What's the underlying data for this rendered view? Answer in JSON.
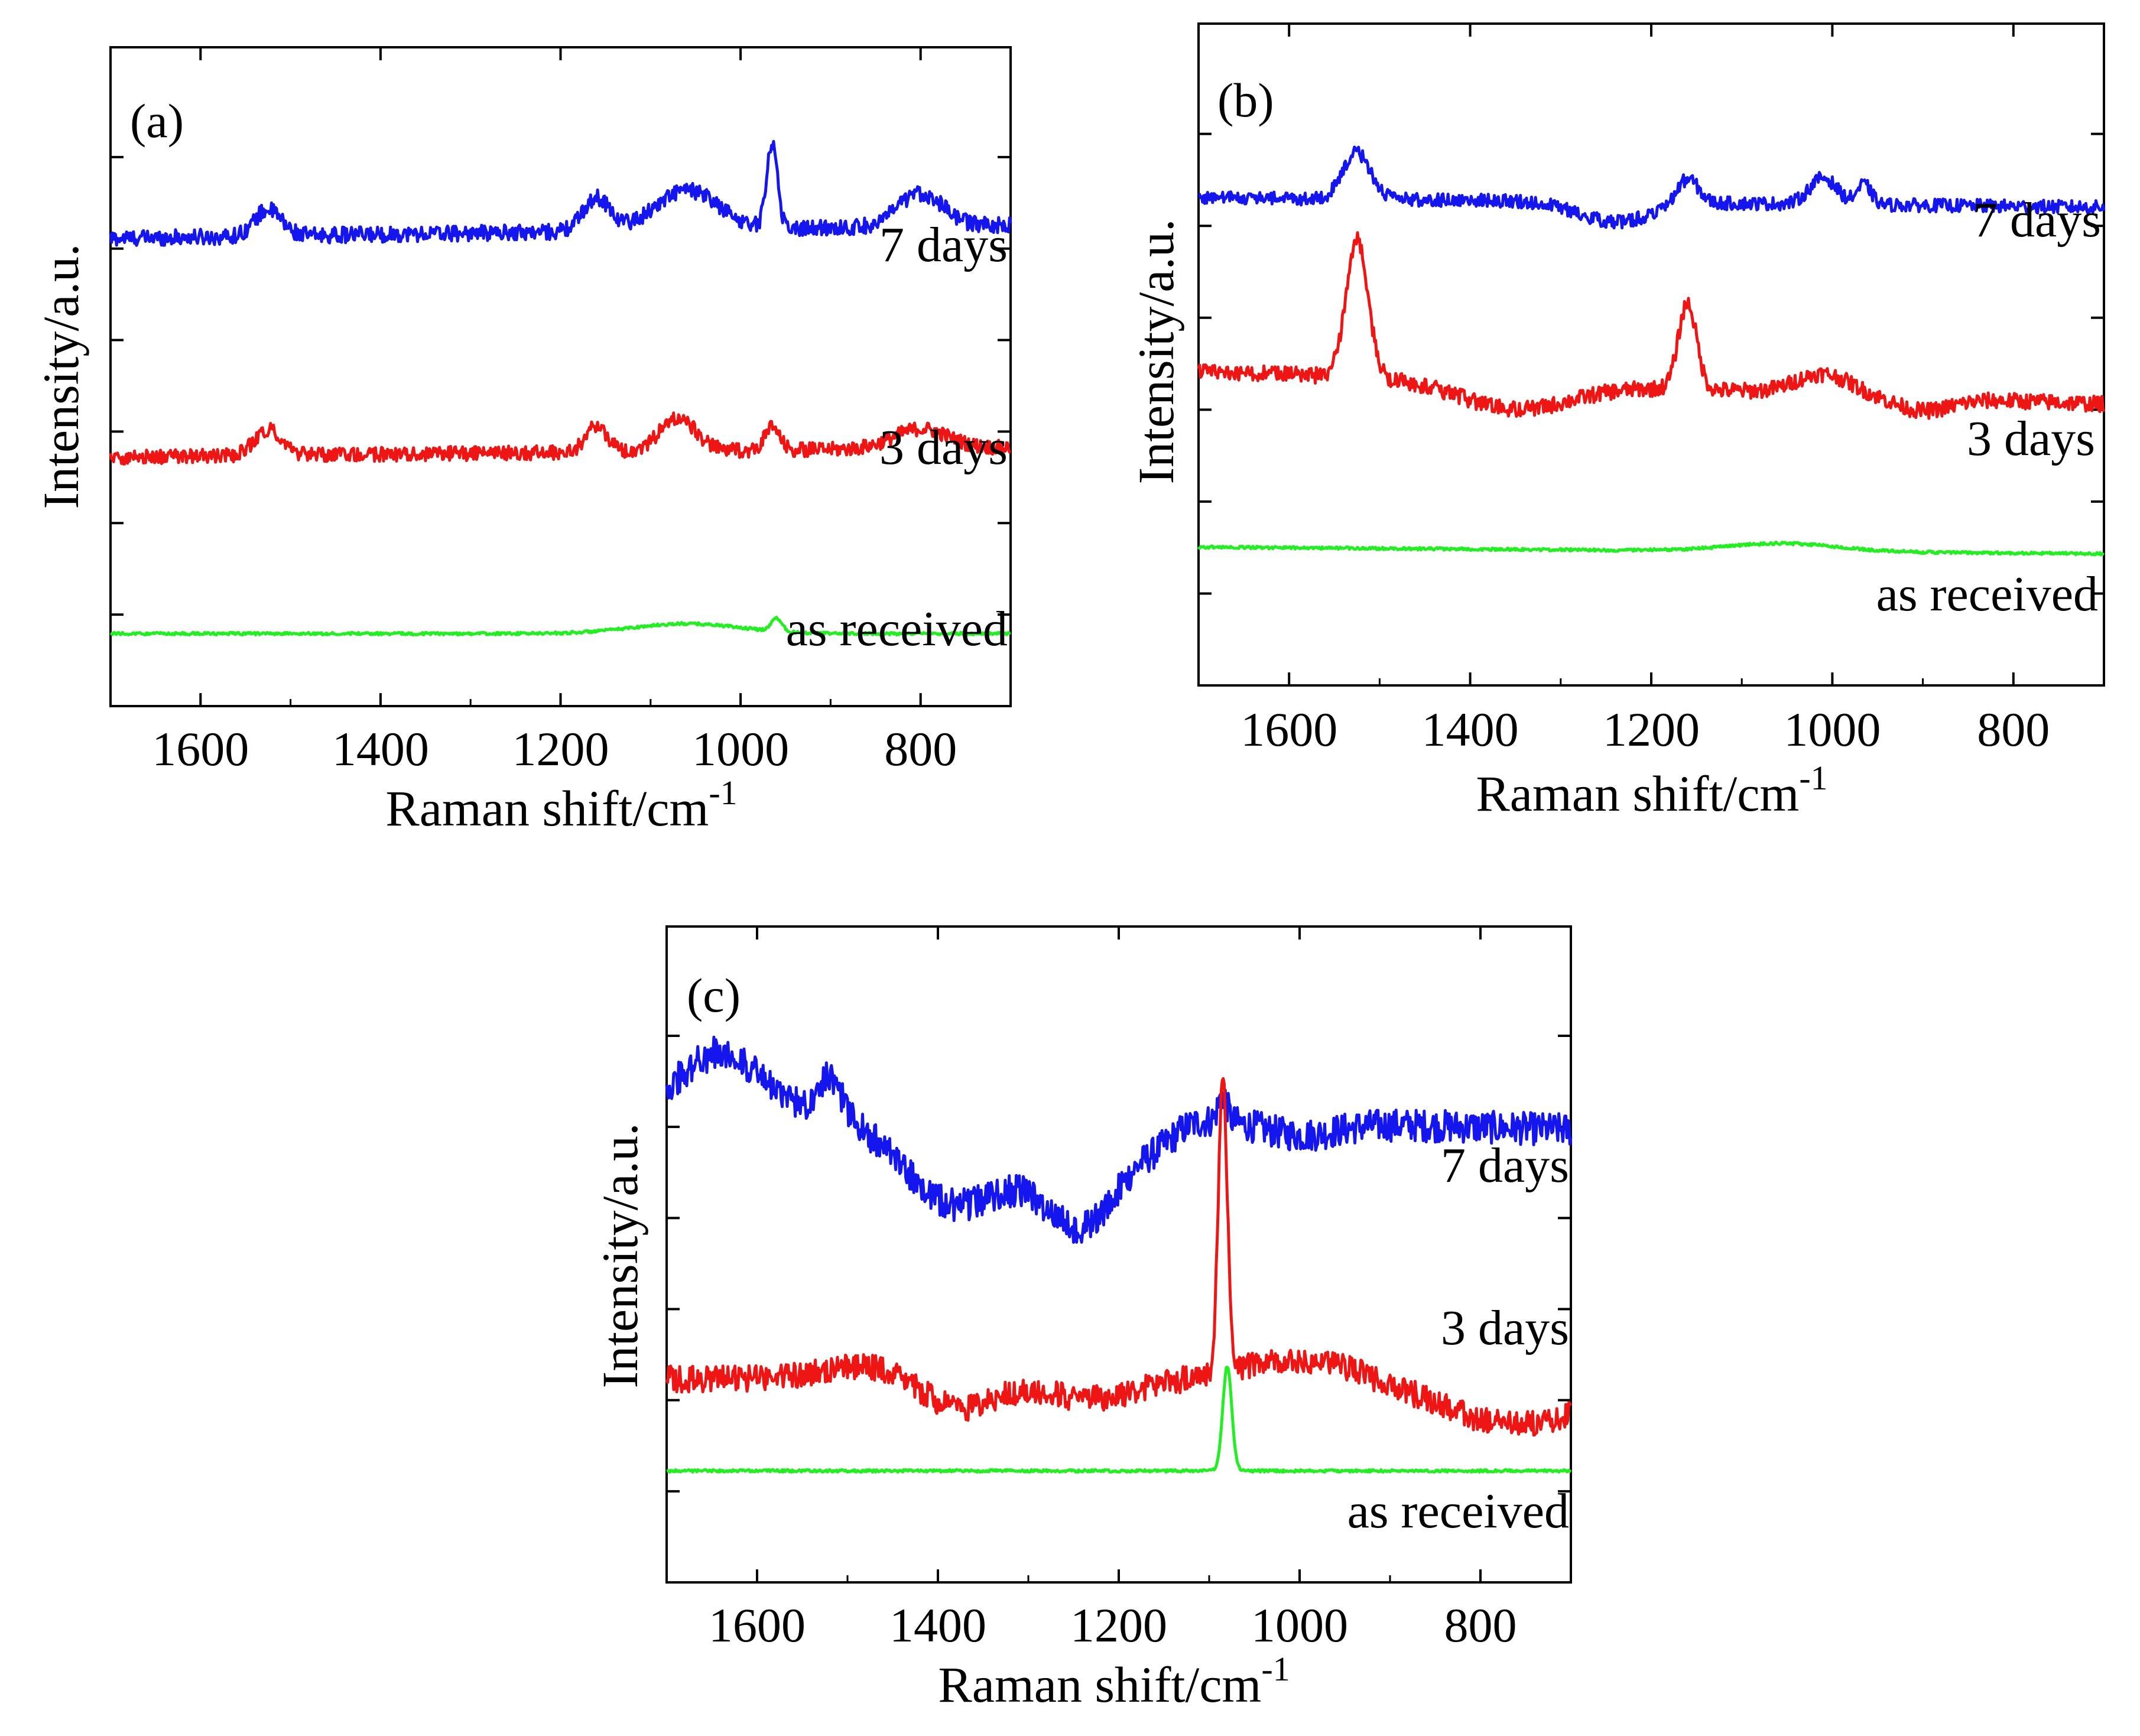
{
  "chart_data": [
    {
      "type": "line",
      "panel_label": "(a)",
      "xlabel": "Raman shift/cm",
      "xlabel_superscript": "-1",
      "ylabel": "Intensity/a.u.",
      "xlim": [
        1700,
        700
      ],
      "x_ticks": [
        "1600",
        "1400",
        "1200",
        "1000",
        "800"
      ],
      "series": [
        {
          "name": "7 days",
          "color": "#1515ee",
          "base": 0.72,
          "slope": 0.02,
          "noise": 0.012,
          "peaks": [
            [
              1525,
              0.04,
              15
            ],
            [
              1160,
              0.05,
              15
            ],
            [
              1060,
              0.06,
              35
            ],
            [
              965,
              0.13,
              6
            ],
            [
              800,
              0.05,
              25
            ]
          ]
        },
        {
          "name": "3 days",
          "color": "#ee1515",
          "base": 0.385,
          "slope": 0.015,
          "noise": 0.011,
          "peaks": [
            [
              1525,
              0.04,
              15
            ],
            [
              1160,
              0.04,
              12
            ],
            [
              1070,
              0.05,
              20
            ],
            [
              965,
              0.035,
              8
            ],
            [
              800,
              0.03,
              30
            ]
          ]
        },
        {
          "name": "as received",
          "color": "#22ee22",
          "base": 0.11,
          "slope": 0.0,
          "noise": 0.002,
          "peaks": [
            [
              1060,
              0.015,
              60
            ],
            [
              960,
              0.02,
              6
            ]
          ]
        }
      ]
    },
    {
      "type": "line",
      "panel_label": "(b)",
      "xlabel": "Raman shift/cm",
      "xlabel_superscript": "-1",
      "ylabel": "Intensity/a.u.",
      "xlim": [
        1700,
        700
      ],
      "x_ticks": [
        "1600",
        "1400",
        "1200",
        "1000",
        "800"
      ],
      "series": [
        {
          "name": "7 days",
          "color": "#1515ee",
          "base": 0.73,
          "slope": -0.015,
          "noise": 0.01,
          "peaks": [
            [
              1525,
              0.07,
              15
            ],
            [
              1160,
              0.04,
              12
            ],
            [
              1010,
              0.04,
              15
            ],
            [
              965,
              0.03,
              8
            ],
            [
              1240,
              -0.03,
              40
            ]
          ]
        },
        {
          "name": "3 days",
          "color": "#ee1515",
          "base": 0.45,
          "slope": -0.05,
          "noise": 0.012,
          "peaks": [
            [
              1525,
              0.21,
              12
            ],
            [
              1160,
              0.13,
              10
            ],
            [
              1350,
              -0.04,
              60
            ],
            [
              1010,
              0.03,
              30
            ],
            [
              900,
              -0.02,
              30
            ]
          ]
        },
        {
          "name": "as received",
          "color": "#22ee22",
          "base": 0.204,
          "slope": -0.01,
          "noise": 0.002,
          "peaks": [
            [
              1055,
              0.012,
              60
            ]
          ]
        }
      ]
    },
    {
      "type": "line",
      "panel_label": "(c)",
      "xlabel": "Raman shift/cm",
      "xlabel_superscript": "-1",
      "ylabel": "Intensity/a.u.",
      "xlim": [
        1700,
        700
      ],
      "x_ticks": [
        "1600",
        "1400",
        "1200",
        "1000",
        "800"
      ],
      "series": [
        {
          "name": "7 days",
          "color": "#1515ee",
          "base": 0.71,
          "slope": -0.04,
          "noise": 0.025,
          "peaks": [
            [
              1640,
              0.08,
              40
            ],
            [
              1520,
              0.06,
              12
            ],
            [
              1380,
              -0.14,
              60
            ],
            [
              1240,
              -0.16,
              45
            ],
            [
              1155,
              -0.02,
              20
            ],
            [
              1085,
              0.04,
              5
            ],
            [
              1000,
              -0.02,
              40
            ]
          ]
        },
        {
          "name": "3 days",
          "color": "#ee1515",
          "base": 0.31,
          "slope": 0.0,
          "noise": 0.02,
          "peaks": [
            [
              1470,
              0.02,
              60
            ],
            [
              1380,
              -0.05,
              40
            ],
            [
              1230,
              -0.03,
              50
            ],
            [
              1085,
              0.45,
              5
            ],
            [
              1000,
              0.03,
              60
            ],
            [
              760,
              -0.07,
              80
            ]
          ]
        },
        {
          "name": "as received",
          "color": "#22ee22",
          "base": 0.17,
          "slope": 0.0,
          "noise": 0.002,
          "peaks": [
            [
              1080,
              0.16,
              5
            ]
          ]
        }
      ]
    }
  ]
}
